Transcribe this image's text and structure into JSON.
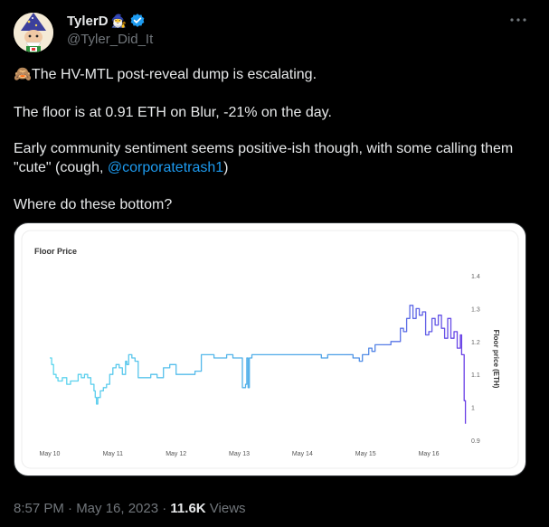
{
  "author": {
    "display_name": "TylerD",
    "name_emoji": "🧙‍♂️",
    "handle": "@Tyler_Did_It",
    "verified_color": "#1d9bf0"
  },
  "tweet": {
    "line1_emoji": "🙈",
    "line1_text": "The HV-MTL post-reveal dump is escalating.",
    "line2": "The floor is at 0.91 ETH on Blur, -21% on the day.",
    "line3_pre": "Early community sentiment seems positive-ish though, with some calling them \"cute\" (cough, ",
    "mention": "@corporatetrash1",
    "line3_post": ")",
    "line4": "Where do these bottom?"
  },
  "meta": {
    "time": "8:57 PM · May 16, 2023 · ",
    "views_count": "11.6K",
    "views_label": " Views"
  },
  "chart_data": {
    "type": "line",
    "title": "Floor Price",
    "ylabel": "Floor price (ETH)",
    "xlabel": "",
    "ylim": [
      0.9,
      1.4
    ],
    "y_ticks": [
      1.4,
      1.3,
      1.2,
      1.1,
      1,
      0.9
    ],
    "y_tick_labels": [
      "1.4",
      "1.3",
      "1.2",
      "1.1",
      "1",
      "0.9"
    ],
    "x_ticks": [
      0,
      1,
      2,
      3,
      4,
      5,
      6
    ],
    "x_tick_labels": [
      "May 10",
      "May 11",
      "May 12",
      "May 13",
      "May 14",
      "May 15",
      "May 16"
    ],
    "line_color_start": "#5dd6ee",
    "line_color_end": "#6a3fe6",
    "series": [
      {
        "x": [
          0,
          0.03,
          0.06,
          0.1,
          0.13,
          0.2,
          0.27,
          0.33,
          0.4,
          0.45,
          0.5,
          0.55,
          0.6,
          0.65,
          0.7,
          0.72,
          0.74,
          0.76,
          0.8,
          0.85,
          0.9,
          0.95,
          1.0,
          1.05,
          1.1,
          1.15,
          1.2,
          1.22,
          1.25,
          1.3,
          1.35,
          1.4,
          1.5,
          1.6,
          1.7,
          1.8,
          1.9,
          2.0,
          2.1,
          2.2,
          2.3,
          2.4,
          2.5,
          2.55,
          2.6,
          2.7,
          2.8,
          2.9,
          3.0,
          3.05,
          3.1,
          3.12,
          3.14,
          3.16,
          3.2,
          3.3,
          3.4,
          3.5,
          3.6,
          3.7,
          3.8,
          3.9,
          4.0,
          4.1,
          4.2,
          4.3,
          4.4,
          4.5,
          4.6,
          4.7,
          4.8,
          4.9,
          4.95,
          5.0,
          5.05,
          5.1,
          5.15,
          5.2,
          5.3,
          5.4,
          5.45,
          5.5,
          5.55,
          5.6,
          5.65,
          5.7,
          5.75,
          5.8,
          5.85,
          5.9,
          5.95,
          6.0,
          6.05,
          6.1,
          6.15,
          6.2,
          6.25,
          6.3,
          6.35,
          6.4,
          6.45,
          6.5,
          6.52,
          6.54,
          6.56,
          6.58
        ],
        "y": [
          1.15,
          1.13,
          1.1,
          1.09,
          1.08,
          1.09,
          1.07,
          1.08,
          1.08,
          1.1,
          1.09,
          1.1,
          1.09,
          1.07,
          1.05,
          1.03,
          1.01,
          1.03,
          1.05,
          1.06,
          1.07,
          1.1,
          1.12,
          1.13,
          1.12,
          1.1,
          1.14,
          1.13,
          1.16,
          1.15,
          1.14,
          1.09,
          1.09,
          1.1,
          1.09,
          1.12,
          1.13,
          1.1,
          1.1,
          1.1,
          1.11,
          1.16,
          1.16,
          1.16,
          1.15,
          1.15,
          1.16,
          1.15,
          1.15,
          1.06,
          1.07,
          1.15,
          1.06,
          1.15,
          1.16,
          1.16,
          1.16,
          1.16,
          1.16,
          1.16,
          1.16,
          1.16,
          1.16,
          1.16,
          1.16,
          1.15,
          1.16,
          1.16,
          1.16,
          1.16,
          1.15,
          1.14,
          1.16,
          1.16,
          1.18,
          1.17,
          1.19,
          1.19,
          1.19,
          1.2,
          1.2,
          1.2,
          1.24,
          1.23,
          1.27,
          1.31,
          1.27,
          1.3,
          1.28,
          1.29,
          1.22,
          1.23,
          1.27,
          1.25,
          1.28,
          1.24,
          1.21,
          1.27,
          1.21,
          1.23,
          1.18,
          1.22,
          1.16,
          1.16,
          1.02,
          0.95
        ]
      }
    ]
  }
}
